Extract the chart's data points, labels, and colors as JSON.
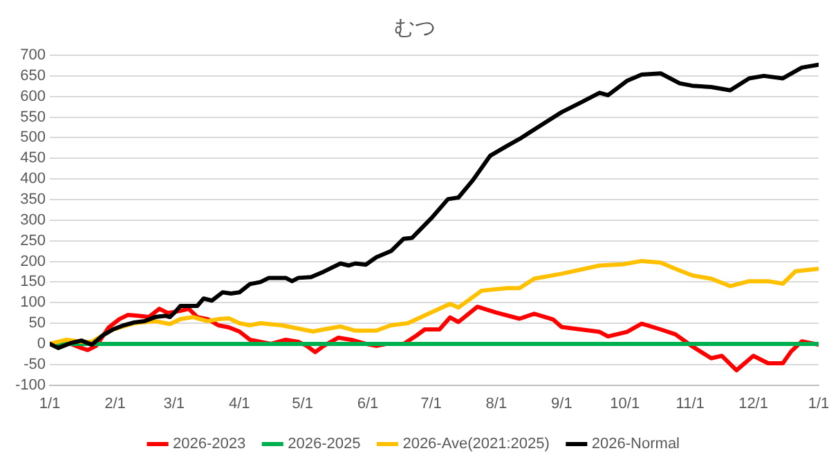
{
  "chart_data": {
    "type": "line",
    "title": "むつ",
    "xlim": [
      "2026-01-01",
      "2027-01-01"
    ],
    "xticks": [
      {
        "value": "2026-01-01",
        "label": "1/1"
      },
      {
        "value": "2026-02-01",
        "label": "2/1"
      },
      {
        "value": "2026-03-01",
        "label": "3/1"
      },
      {
        "value": "2026-04-01",
        "label": "4/1"
      },
      {
        "value": "2026-05-01",
        "label": "5/1"
      },
      {
        "value": "2026-06-01",
        "label": "6/1"
      },
      {
        "value": "2026-07-01",
        "label": "7/1"
      },
      {
        "value": "2026-08-01",
        "label": "8/1"
      },
      {
        "value": "2026-09-01",
        "label": "9/1"
      },
      {
        "value": "2026-10-01",
        "label": "10/1"
      },
      {
        "value": "2026-11-01",
        "label": "11/1"
      },
      {
        "value": "2026-12-01",
        "label": "12/1"
      },
      {
        "value": "2027-01-01",
        "label": "1/1"
      }
    ],
    "ylim": [
      -100,
      700
    ],
    "yticks": [
      -100,
      -50,
      0,
      50,
      100,
      150,
      200,
      250,
      300,
      350,
      400,
      450,
      500,
      550,
      600,
      650,
      700
    ],
    "grid": "y",
    "legend": "bottom",
    "marker": "none",
    "line_style": "solid",
    "series": [
      {
        "name": "2026-2023",
        "color": "#ff0000",
        "x": [
          "2026-01-01",
          "2026-01-11",
          "2026-01-16",
          "2026-01-19",
          "2026-01-23",
          "2026-01-29",
          "2026-02-03",
          "2026-02-07",
          "2026-02-12",
          "2026-02-17",
          "2026-02-22",
          "2026-02-26",
          "2026-03-04",
          "2026-03-08",
          "2026-03-12",
          "2026-03-17",
          "2026-03-22",
          "2026-03-27",
          "2026-04-01",
          "2026-04-06",
          "2026-04-11",
          "2026-04-16",
          "2026-04-23",
          "2026-04-29",
          "2026-05-03",
          "2026-05-07",
          "2026-05-11",
          "2026-05-18",
          "2026-05-24",
          "2026-05-31",
          "2026-06-05",
          "2026-06-10",
          "2026-06-18",
          "2026-06-24",
          "2026-06-28",
          "2026-07-05",
          "2026-07-10",
          "2026-07-14",
          "2026-07-23",
          "2026-08-01",
          "2026-08-12",
          "2026-08-19",
          "2026-08-28",
          "2026-09-01",
          "2026-09-10",
          "2026-09-19",
          "2026-09-23",
          "2026-10-02",
          "2026-10-09",
          "2026-10-18",
          "2026-10-25",
          "2026-11-02",
          "2026-11-11",
          "2026-11-16",
          "2026-11-23",
          "2026-12-01",
          "2026-12-08",
          "2026-12-15",
          "2026-12-19",
          "2026-12-24",
          "2027-01-01"
        ],
        "values": [
          0,
          0,
          -10,
          -15,
          -5,
          40,
          60,
          70,
          68,
          65,
          85,
          75,
          80,
          85,
          65,
          60,
          45,
          40,
          30,
          10,
          5,
          0,
          10,
          5,
          -5,
          -20,
          -5,
          15,
          10,
          0,
          -5,
          0,
          0,
          20,
          35,
          35,
          64,
          53,
          90,
          76,
          61,
          73,
          59,
          41,
          35,
          29,
          18,
          29,
          49,
          35,
          23,
          -6,
          -35,
          -29,
          -64,
          -29,
          -47,
          -47,
          -18,
          6,
          -2
        ]
      },
      {
        "name": "2026-2025",
        "color": "#00b050",
        "x": [
          "2026-01-01",
          "2027-01-01"
        ],
        "values": [
          0,
          0
        ]
      },
      {
        "name": "2026-Ave(2021:2025)",
        "color": "#ffc000",
        "x": [
          "2026-01-01",
          "2026-01-09",
          "2026-01-16",
          "2026-01-21",
          "2026-01-26",
          "2026-01-31",
          "2026-02-10",
          "2026-02-20",
          "2026-02-27",
          "2026-03-04",
          "2026-03-10",
          "2026-03-17",
          "2026-03-22",
          "2026-03-27",
          "2026-04-01",
          "2026-04-06",
          "2026-04-11",
          "2026-04-21",
          "2026-04-26",
          "2026-05-01",
          "2026-05-06",
          "2026-05-11",
          "2026-05-19",
          "2026-05-26",
          "2026-06-05",
          "2026-06-12",
          "2026-06-20",
          "2026-07-01",
          "2026-07-10",
          "2026-07-14",
          "2026-07-25",
          "2026-08-06",
          "2026-08-12",
          "2026-08-19",
          "2026-09-01",
          "2026-09-19",
          "2026-09-30",
          "2026-10-09",
          "2026-10-18",
          "2026-10-25",
          "2026-11-02",
          "2026-11-11",
          "2026-11-20",
          "2026-11-29",
          "2026-12-08",
          "2026-12-15",
          "2026-12-21",
          "2027-01-01"
        ],
        "values": [
          0,
          10,
          5,
          5,
          20,
          35,
          50,
          55,
          48,
          60,
          65,
          55,
          60,
          62,
          50,
          45,
          50,
          45,
          40,
          35,
          30,
          35,
          42,
          32,
          32,
          45,
          50,
          76,
          97,
          88,
          129,
          135,
          135,
          158,
          170,
          190,
          193,
          201,
          197,
          182,
          166,
          158,
          140,
          152,
          152,
          146,
          176,
          182
        ]
      },
      {
        "name": "2026-Normal",
        "color": "#000000",
        "x": [
          "2026-01-01",
          "2026-01-05",
          "2026-01-11",
          "2026-01-16",
          "2026-01-21",
          "2026-01-26",
          "2026-01-31",
          "2026-02-05",
          "2026-02-10",
          "2026-02-15",
          "2026-02-20",
          "2026-02-25",
          "2026-02-27",
          "2026-03-02",
          "2026-03-04",
          "2026-03-12",
          "2026-03-15",
          "2026-03-19",
          "2026-03-24",
          "2026-03-28",
          "2026-04-01",
          "2026-04-06",
          "2026-04-11",
          "2026-04-15",
          "2026-04-23",
          "2026-04-26",
          "2026-04-29",
          "2026-05-05",
          "2026-05-11",
          "2026-05-19",
          "2026-05-23",
          "2026-05-26",
          "2026-05-31",
          "2026-06-05",
          "2026-06-12",
          "2026-06-18",
          "2026-06-22",
          "2026-07-01",
          "2026-07-09",
          "2026-07-14",
          "2026-07-21",
          "2026-07-29",
          "2026-08-06",
          "2026-08-12",
          "2026-08-23",
          "2026-09-01",
          "2026-09-10",
          "2026-09-19",
          "2026-09-23",
          "2026-10-02",
          "2026-10-09",
          "2026-10-18",
          "2026-10-27",
          "2026-11-02",
          "2026-11-11",
          "2026-11-20",
          "2026-11-29",
          "2026-12-06",
          "2026-12-15",
          "2026-12-24",
          "2027-01-01"
        ],
        "values": [
          0,
          -10,
          2,
          8,
          -2,
          20,
          35,
          45,
          52,
          55,
          65,
          68,
          65,
          80,
          92,
          92,
          110,
          105,
          125,
          122,
          125,
          145,
          150,
          160,
          160,
          152,
          160,
          162,
          175,
          195,
          190,
          195,
          192,
          210,
          225,
          255,
          257,
          304,
          351,
          355,
          398,
          456,
          480,
          497,
          533,
          562,
          585,
          609,
          603,
          638,
          653,
          656,
          632,
          626,
          623,
          615,
          644,
          650,
          644,
          670,
          677
        ]
      }
    ]
  }
}
